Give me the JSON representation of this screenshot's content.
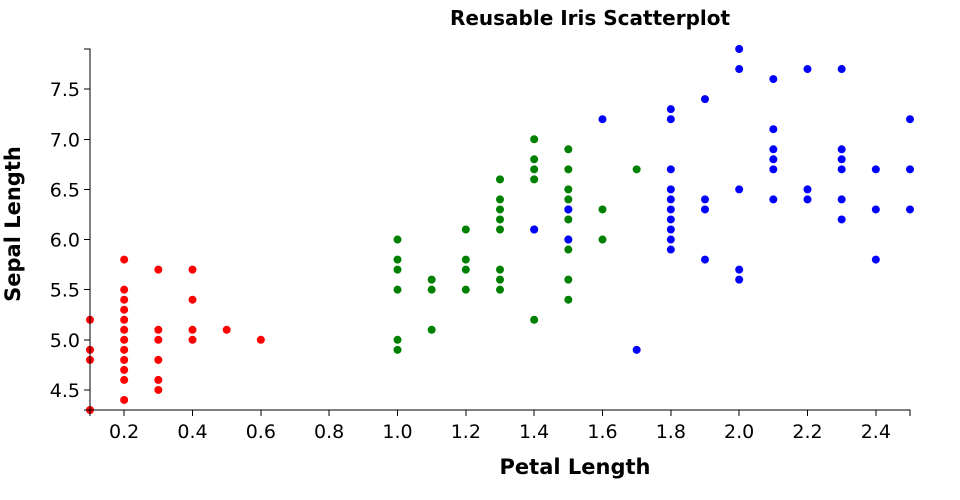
{
  "chart_data": {
    "type": "scatter",
    "title": "Reusable Iris Scatterplot",
    "xlabel": "Petal Length",
    "ylabel": "Sepal Length",
    "xlim": [
      0.1,
      2.5
    ],
    "ylim": [
      4.3,
      7.9
    ],
    "xticks": [
      "0.2",
      "0.4",
      "0.6",
      "0.8",
      "1.0",
      "1.2",
      "1.4",
      "1.6",
      "1.8",
      "2.0",
      "2.2",
      "2.4"
    ],
    "yticks": [
      "4.5",
      "5.0",
      "5.5",
      "6.0",
      "6.5",
      "7.0",
      "7.5"
    ],
    "grid": false,
    "series": [
      {
        "color": "#ff0000",
        "points": [
          [
            0.1,
            5.2
          ],
          [
            0.1,
            4.9
          ],
          [
            0.1,
            4.8
          ],
          [
            0.1,
            4.3
          ],
          [
            0.2,
            5.8
          ],
          [
            0.2,
            5.5
          ],
          [
            0.2,
            5.4
          ],
          [
            0.2,
            5.3
          ],
          [
            0.2,
            5.2
          ],
          [
            0.2,
            5.1
          ],
          [
            0.2,
            5.0
          ],
          [
            0.2,
            4.9
          ],
          [
            0.2,
            4.8
          ],
          [
            0.2,
            4.7
          ],
          [
            0.2,
            4.6
          ],
          [
            0.2,
            4.4
          ],
          [
            0.3,
            5.7
          ],
          [
            0.3,
            5.1
          ],
          [
            0.3,
            5.0
          ],
          [
            0.3,
            4.8
          ],
          [
            0.3,
            4.6
          ],
          [
            0.3,
            4.5
          ],
          [
            0.4,
            5.7
          ],
          [
            0.4,
            5.4
          ],
          [
            0.4,
            5.1
          ],
          [
            0.4,
            5.0
          ],
          [
            0.5,
            5.1
          ],
          [
            0.6,
            5.0
          ]
        ]
      },
      {
        "color": "#008000",
        "points": [
          [
            1.0,
            6.0
          ],
          [
            1.0,
            5.8
          ],
          [
            1.0,
            5.7
          ],
          [
            1.0,
            5.5
          ],
          [
            1.0,
            5.0
          ],
          [
            1.0,
            4.9
          ],
          [
            1.1,
            5.6
          ],
          [
            1.1,
            5.5
          ],
          [
            1.1,
            5.1
          ],
          [
            1.2,
            6.1
          ],
          [
            1.2,
            5.8
          ],
          [
            1.2,
            5.7
          ],
          [
            1.2,
            5.5
          ],
          [
            1.3,
            6.6
          ],
          [
            1.3,
            6.4
          ],
          [
            1.3,
            6.3
          ],
          [
            1.3,
            6.2
          ],
          [
            1.3,
            6.1
          ],
          [
            1.3,
            5.7
          ],
          [
            1.3,
            5.6
          ],
          [
            1.3,
            5.5
          ],
          [
            1.4,
            7.0
          ],
          [
            1.4,
            6.8
          ],
          [
            1.4,
            6.7
          ],
          [
            1.4,
            6.6
          ],
          [
            1.4,
            6.1
          ],
          [
            1.4,
            5.2
          ],
          [
            1.5,
            6.9
          ],
          [
            1.5,
            6.7
          ],
          [
            1.5,
            6.5
          ],
          [
            1.5,
            6.4
          ],
          [
            1.5,
            6.3
          ],
          [
            1.5,
            6.2
          ],
          [
            1.5,
            6.0
          ],
          [
            1.5,
            5.9
          ],
          [
            1.5,
            5.6
          ],
          [
            1.5,
            5.4
          ],
          [
            1.6,
            6.3
          ],
          [
            1.6,
            6.0
          ],
          [
            1.7,
            6.7
          ]
        ]
      },
      {
        "color": "#0000ff",
        "points": [
          [
            1.4,
            6.1
          ],
          [
            1.5,
            6.3
          ],
          [
            1.5,
            6.0
          ],
          [
            1.6,
            7.2
          ],
          [
            1.7,
            4.9
          ],
          [
            1.8,
            7.3
          ],
          [
            1.8,
            7.2
          ],
          [
            1.8,
            6.7
          ],
          [
            1.8,
            6.5
          ],
          [
            1.8,
            6.4
          ],
          [
            1.8,
            6.3
          ],
          [
            1.8,
            6.2
          ],
          [
            1.8,
            6.1
          ],
          [
            1.8,
            6.0
          ],
          [
            1.8,
            5.9
          ],
          [
            1.9,
            7.4
          ],
          [
            1.9,
            6.4
          ],
          [
            1.9,
            6.3
          ],
          [
            1.9,
            5.8
          ],
          [
            2.0,
            7.9
          ],
          [
            2.0,
            7.7
          ],
          [
            2.0,
            6.5
          ],
          [
            2.0,
            5.7
          ],
          [
            2.0,
            5.6
          ],
          [
            2.1,
            7.6
          ],
          [
            2.1,
            7.1
          ],
          [
            2.1,
            6.9
          ],
          [
            2.1,
            6.8
          ],
          [
            2.1,
            6.7
          ],
          [
            2.1,
            6.4
          ],
          [
            2.2,
            7.7
          ],
          [
            2.2,
            6.5
          ],
          [
            2.2,
            6.4
          ],
          [
            2.3,
            7.7
          ],
          [
            2.3,
            6.9
          ],
          [
            2.3,
            6.8
          ],
          [
            2.3,
            6.7
          ],
          [
            2.3,
            6.4
          ],
          [
            2.3,
            6.2
          ],
          [
            2.4,
            6.7
          ],
          [
            2.4,
            6.3
          ],
          [
            2.4,
            5.8
          ],
          [
            2.5,
            7.2
          ],
          [
            2.5,
            6.7
          ],
          [
            2.5,
            6.3
          ]
        ]
      }
    ]
  }
}
